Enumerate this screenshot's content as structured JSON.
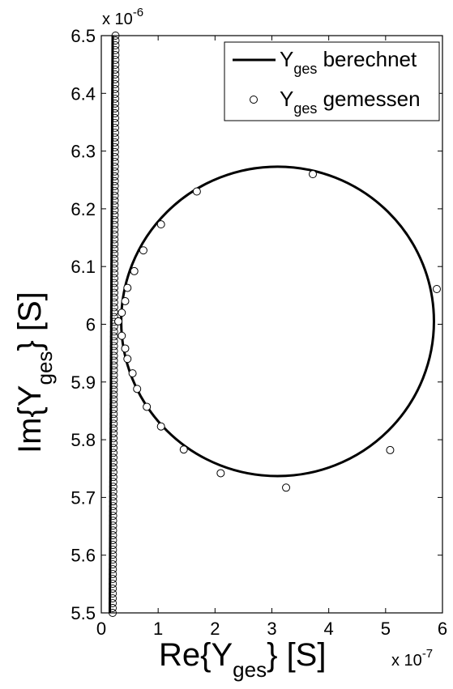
{
  "chart_data": {
    "type": "scatter",
    "xlim": [
      0,
      6
    ],
    "ylim": [
      5.5,
      6.5
    ],
    "x_multiplier": "x 10",
    "x_multiplier_exp": "-7",
    "y_multiplier": "x 10",
    "y_multiplier_exp": "-6",
    "x_ticks": [
      "0",
      "1",
      "2",
      "3",
      "4",
      "5",
      "6"
    ],
    "y_ticks": [
      "5.5",
      "5.6",
      "5.7",
      "5.8",
      "5.9",
      "6",
      "6.1",
      "6.2",
      "6.3",
      "6.4",
      "6.5"
    ],
    "xlabel": {
      "pre": "Re{Y",
      "sub": "ges",
      "post": "} [S]"
    },
    "ylabel": {
      "pre": "Im{Y",
      "sub": "ges",
      "post": "} [S]"
    },
    "legend_position": "top-right",
    "series": [
      {
        "name_pre": "Y",
        "name_sub": "ges",
        "name_post": " berechnet",
        "style": "line",
        "circle": {
          "center_x": 3.1,
          "center_y": 6.005,
          "radius_x": 2.75,
          "radius_y": 0.268
        },
        "vertical_segment": [
          [
            0.15,
            5.5
          ],
          [
            0.2,
            6.5
          ]
        ]
      },
      {
        "name_pre": "Y",
        "name_sub": "ges",
        "name_post": " gemessen",
        "style": "open-circle",
        "points": [
          {
            "x": 3.72,
            "y": 6.26
          },
          {
            "x": 1.68,
            "y": 6.23
          },
          {
            "x": 1.05,
            "y": 6.173
          },
          {
            "x": 0.74,
            "y": 6.128
          },
          {
            "x": 0.58,
            "y": 6.092
          },
          {
            "x": 0.46,
            "y": 6.063
          },
          {
            "x": 0.42,
            "y": 6.04
          },
          {
            "x": 0.36,
            "y": 6.02
          },
          {
            "x": 0.3,
            "y": 6.005
          },
          {
            "x": 0.36,
            "y": 5.98
          },
          {
            "x": 0.42,
            "y": 5.958
          },
          {
            "x": 0.46,
            "y": 5.94
          },
          {
            "x": 0.55,
            "y": 5.915
          },
          {
            "x": 0.63,
            "y": 5.888
          },
          {
            "x": 0.8,
            "y": 5.857
          },
          {
            "x": 1.05,
            "y": 5.823
          },
          {
            "x": 1.45,
            "y": 5.783
          },
          {
            "x": 2.1,
            "y": 5.742
          },
          {
            "x": 3.25,
            "y": 5.717
          },
          {
            "x": 5.08,
            "y": 5.782
          },
          {
            "x": 5.9,
            "y": 6.061
          }
        ],
        "vertical_points": {
          "x_bottom": 0.2,
          "x_top": 0.25,
          "y_start": 5.5,
          "y_end": 6.5,
          "count": 120
        }
      }
    ]
  }
}
